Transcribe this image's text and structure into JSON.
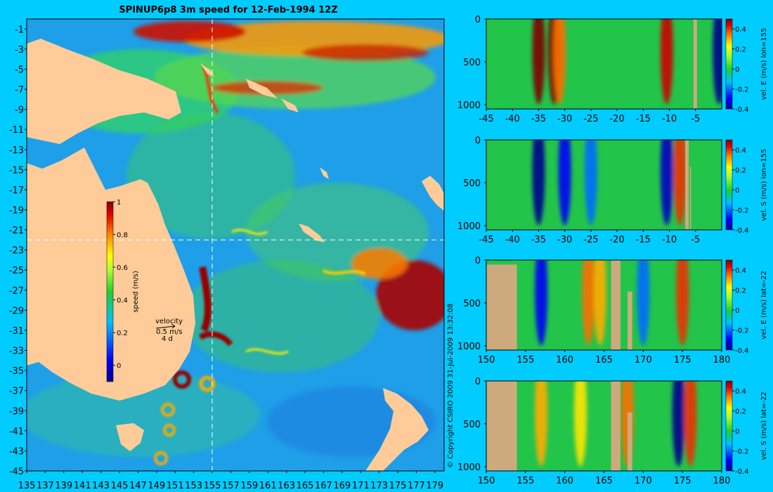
{
  "chart_data": [
    {
      "type": "heatmap",
      "title": "SPINUP6p8 3m speed for 12-Feb-1994 12Z",
      "xlim": [
        135,
        180
      ],
      "ylim": [
        -45,
        0
      ],
      "x_ticks": [
        "135",
        "137",
        "139",
        "141",
        "143",
        "145",
        "147",
        "149",
        "151",
        "153",
        "155",
        "157",
        "159",
        "161",
        "163",
        "165",
        "167",
        "169",
        "171",
        "173",
        "175",
        "177",
        "179"
      ],
      "y_ticks": [
        "-1",
        "-3",
        "-5",
        "-7",
        "-9",
        "-11",
        "-13",
        "-15",
        "-17",
        "-19",
        "-21",
        "-23",
        "-25",
        "-27",
        "-29",
        "-31",
        "-33",
        "-35",
        "-37",
        "-39",
        "-41",
        "-43",
        "-45"
      ],
      "section_lines": {
        "lon": 155,
        "lat": -22
      },
      "colorbar": {
        "label": "speed (m/s)",
        "range": [
          -0.1,
          1
        ],
        "ticks": [
          "1",
          "0.8",
          "0.6",
          "0.4",
          "0.2",
          "0"
        ]
      },
      "velocity_key": {
        "label": "velocity",
        "speed": "0.5 m/s",
        "time": "4 d"
      },
      "colors": {
        "land": "#ffcc99",
        "background": "#00ccff"
      }
    },
    {
      "type": "heatmap",
      "xlim": [
        -45,
        0
      ],
      "ylim": [
        1050,
        0
      ],
      "x_ticks": [
        "-45",
        "-40",
        "-35",
        "-30",
        "-25",
        "-20",
        "-15",
        "-10",
        "-5"
      ],
      "y_ticks": [
        "0",
        "500",
        "1000"
      ],
      "colorbar": {
        "label": "vel. E (m/s) lon=155",
        "range": [
          -0.4,
          0.5
        ],
        "ticks": [
          "0.4",
          "0.2",
          "0",
          "-0.2",
          "-0.4"
        ]
      },
      "features": [
        {
          "x": -35,
          "v": 0.5
        },
        {
          "x": -32,
          "v": 0.5
        },
        {
          "x": -31,
          "v": 0.35
        },
        {
          "x": -10.5,
          "v": 0.45
        },
        {
          "x": -0.5,
          "v": -0.4
        }
      ],
      "colors": {
        "topography": "#cdaa7d"
      }
    },
    {
      "type": "heatmap",
      "xlim": [
        -45,
        0
      ],
      "ylim": [
        1050,
        0
      ],
      "x_ticks": [
        "-45",
        "-40",
        "-35",
        "-30",
        "-25",
        "-20",
        "-15",
        "-10",
        "-5"
      ],
      "y_ticks": [
        "0",
        "500",
        "1000"
      ],
      "colorbar": {
        "label": "vel. S (m/s) lon=155",
        "range": [
          -0.4,
          0.5
        ],
        "ticks": [
          "0.4",
          "0.2",
          "0",
          "-0.2",
          "-0.4"
        ]
      },
      "features": [
        {
          "x": -35,
          "v": -0.45
        },
        {
          "x": -30,
          "v": -0.3
        },
        {
          "x": -25,
          "v": -0.2
        },
        {
          "x": -8,
          "v": 0.4
        },
        {
          "x": -10.5,
          "v": -0.35
        }
      ],
      "colors": {
        "topography": "#cdaa7d"
      }
    },
    {
      "type": "heatmap",
      "xlim": [
        150,
        180
      ],
      "ylim": [
        1050,
        0
      ],
      "x_ticks": [
        "150",
        "155",
        "160",
        "165",
        "170",
        "175",
        "180"
      ],
      "y_ticks": [
        "0",
        "500",
        "1000"
      ],
      "colorbar": {
        "label": "vel. E (m/s) lat=-22",
        "range": [
          -0.4,
          0.5
        ],
        "ticks": [
          "0.4",
          "0.2",
          "0",
          "-0.2",
          "-0.4"
        ]
      },
      "features": [
        {
          "x": 157,
          "v": -0.3
        },
        {
          "x": 163,
          "v": 0.35
        },
        {
          "x": 164.5,
          "v": 0.3
        },
        {
          "x": 170,
          "v": -0.2
        },
        {
          "x": 175,
          "v": 0.4
        }
      ],
      "colors": {
        "topography": "#cdaa7d"
      }
    },
    {
      "type": "heatmap",
      "xlim": [
        150,
        180
      ],
      "ylim": [
        1050,
        0
      ],
      "x_ticks": [
        "150",
        "155",
        "160",
        "165",
        "170",
        "175",
        "180"
      ],
      "y_ticks": [
        "0",
        "500",
        "1000"
      ],
      "colorbar": {
        "label": "vel. S (m/s) lat=-22",
        "range": [
          -0.4,
          0.5
        ],
        "ticks": [
          "0.4",
          "0.2",
          "0",
          "-0.2",
          "-0.4"
        ]
      },
      "features": [
        {
          "x": 157,
          "v": 0.3
        },
        {
          "x": 162,
          "v": 0.25
        },
        {
          "x": 168,
          "v": 0.35
        },
        {
          "x": 174.5,
          "v": -0.4
        },
        {
          "x": 176,
          "v": 0.4
        }
      ],
      "colors": {
        "topography": "#cdaa7d"
      }
    }
  ],
  "copyright": "© Copyright CSIRO 2009   31-Jul-2009 13:32:08"
}
